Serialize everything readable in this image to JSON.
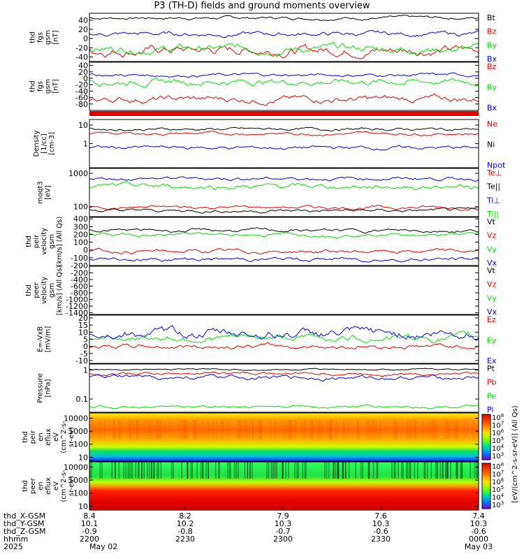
{
  "title": "P3 (TH-D) fields and ground moments overview",
  "footer": {
    "rows": [
      {
        "label": "thd_X-GSM",
        "values": [
          "8.4",
          "8.2",
          "7.9",
          "7.6",
          "7.4"
        ]
      },
      {
        "label": "thd_Y-GSM",
        "values": [
          "10.1",
          "10.2",
          "10.3",
          "10.3",
          "10.3"
        ]
      },
      {
        "label": "thd_Z-GSM",
        "values": [
          "-0.9",
          "-0.8",
          "-0.7",
          "-0.6",
          "-0.6"
        ]
      },
      {
        "label": "hhmm",
        "values": [
          "2200",
          "2230",
          "2300",
          "2330",
          "0000"
        ]
      },
      {
        "label": "2025",
        "values": [
          "May 02",
          "",
          "",
          "",
          "May 03"
        ]
      }
    ]
  },
  "colors": {
    "black": "#000000",
    "red": "#e00000",
    "green": "#00e000",
    "blue": "#0000e0"
  },
  "colorbar_label": "[eV/(cm^2-s-sr-eV)] (All Qs)",
  "chart_data": [
    {
      "type": "line",
      "ylabel": [
        "thd",
        "fgs",
        "gsm",
        "[nT]"
      ],
      "ylim": [
        -50,
        55
      ],
      "ticks": [
        40,
        20,
        0,
        -20,
        -40
      ],
      "series": [
        {
          "name": "Bt",
          "color": "black",
          "base": 45,
          "amp": 4
        },
        {
          "name": "Bz",
          "color": "red",
          "base": -25,
          "amp": 12
        },
        {
          "name": "By",
          "color": "green",
          "base": -22,
          "amp": 10
        },
        {
          "name": "Bx",
          "color": "blue",
          "base": 10,
          "amp": 6
        }
      ]
    },
    {
      "type": "line",
      "ylabel": [
        "thd",
        "fgs",
        "gsm",
        "[nT]"
      ],
      "ylim": [
        -100,
        50
      ],
      "ticks": [
        40,
        20,
        0,
        -20,
        -40,
        -60,
        -80
      ],
      "series": [
        {
          "name": "Bz",
          "color": "red",
          "base": -65,
          "amp": 12
        },
        {
          "name": "By",
          "color": "green",
          "base": -10,
          "amp": 12
        },
        {
          "name": "Bx",
          "color": "blue",
          "base": 10,
          "amp": 6
        }
      ]
    },
    {
      "type": "bar",
      "ylabel": [],
      "ylim": [
        0,
        1
      ],
      "ticks": [],
      "series": [
        {
          "name": "",
          "color": "red"
        }
      ]
    },
    {
      "type": "line",
      "ylabel": [
        "Density",
        "[1/cc]",
        "[cm-3]"
      ],
      "ylim": [
        0.05,
        20
      ],
      "log": true,
      "ticks": [
        10,
        1
      ],
      "series": [
        {
          "name": "Ne",
          "color": "red",
          "base": 3.5,
          "amp": 0.15
        },
        {
          "name": "Ni",
          "color": "black",
          "base": 6,
          "amp": 0.15
        },
        {
          "name": "Npot",
          "color": "blue",
          "base": 0.6,
          "amp": 0.2
        }
      ]
    },
    {
      "type": "line",
      "ylabel": [
        "moqt3",
        "[eV]"
      ],
      "ylim": [
        50,
        1400
      ],
      "log": true,
      "ticks": [
        1000,
        100
      ],
      "series": [
        {
          "name": "Te⊥",
          "color": "red",
          "base": 95,
          "amp": 0.1
        },
        {
          "name": "Te||",
          "color": "black",
          "base": 75,
          "amp": 0.1
        },
        {
          "name": "Ti⊥",
          "color": "blue",
          "base": 700,
          "amp": 0.1
        },
        {
          "name": "Ti||",
          "color": "green",
          "base": 400,
          "amp": 0.15
        }
      ]
    },
    {
      "type": "line",
      "ylabel": [
        "thd",
        "peir",
        "velocity",
        "gsm",
        "[km/s] (All Qs)"
      ],
      "ylim": [
        -200,
        420
      ],
      "ticks": [
        400,
        300,
        200,
        100,
        0,
        -100,
        -200
      ],
      "series": [
        {
          "name": "Vt",
          "color": "black",
          "base": 250,
          "amp": 25
        },
        {
          "name": "Vz",
          "color": "red",
          "base": -20,
          "amp": 30
        },
        {
          "name": "Vy",
          "color": "green",
          "base": 200,
          "amp": 25
        },
        {
          "name": "Vx",
          "color": "blue",
          "base": -120,
          "amp": 30
        }
      ]
    },
    {
      "type": "line",
      "ylabel": [
        "thd",
        "peer",
        "velocity",
        "gsm",
        "[km/s] (All Qs)"
      ],
      "ylim": [
        -1450,
        0
      ],
      "ticks": [
        -200,
        -400,
        -600,
        -800,
        -1000,
        -1200,
        -1400
      ],
      "series": [
        {
          "name": "Vt",
          "color": "black"
        },
        {
          "name": "Vz",
          "color": "red"
        },
        {
          "name": "Vy",
          "color": "green"
        },
        {
          "name": "Vx",
          "color": "blue"
        }
      ]
    },
    {
      "type": "line",
      "ylabel": [
        "E=-VxB",
        "[mV/m]"
      ],
      "ylim": [
        -12,
        22
      ],
      "ticks": [
        20,
        15,
        10,
        5,
        0,
        -5,
        -10
      ],
      "series": [
        {
          "name": "Ez",
          "color": "red",
          "base": 0,
          "amp": 2
        },
        {
          "name": "Ey",
          "color": "green",
          "base": 6,
          "amp": 3
        },
        {
          "name": "Ex",
          "color": "blue",
          "base": 9,
          "amp": 4
        }
      ]
    },
    {
      "type": "line",
      "ylabel": [
        "Pressure",
        "[nPa]"
      ],
      "ylim": [
        0.035,
        1.6
      ],
      "log": true,
      "ticks": [
        1.0,
        0.1
      ],
      "series": [
        {
          "name": "Pt",
          "color": "black",
          "base": 1.05,
          "amp": 0.05
        },
        {
          "name": "Pb",
          "color": "red",
          "base": 0.75,
          "amp": 0.1
        },
        {
          "name": "Pe",
          "color": "green",
          "base": 0.055,
          "amp": 0.1
        },
        {
          "name": "Pi",
          "color": "blue",
          "base": 0.55,
          "amp": 0.15
        }
      ]
    },
    {
      "type": "heatmap",
      "ylabel": [
        "thd",
        "peir",
        "en",
        "eflux",
        "eV",
        "(cm^2-s-",
        "sr-eV)"
      ],
      "ylim": [
        5,
        25000
      ],
      "log": true,
      "ticks": [
        10000,
        1000,
        100,
        10
      ]
    },
    {
      "type": "heatmap",
      "ylabel": [
        "thd",
        "peer",
        "en",
        "eflux",
        "eV",
        "(cm^2-s-",
        "sr-eV)"
      ],
      "ylim": [
        5,
        25000
      ],
      "log": true,
      "ticks": [
        10000,
        1000,
        100,
        10
      ]
    }
  ],
  "colorbar_ticks": [
    "10^8",
    "10^7",
    "10^6",
    "10^5",
    "10^4",
    "10^3"
  ]
}
